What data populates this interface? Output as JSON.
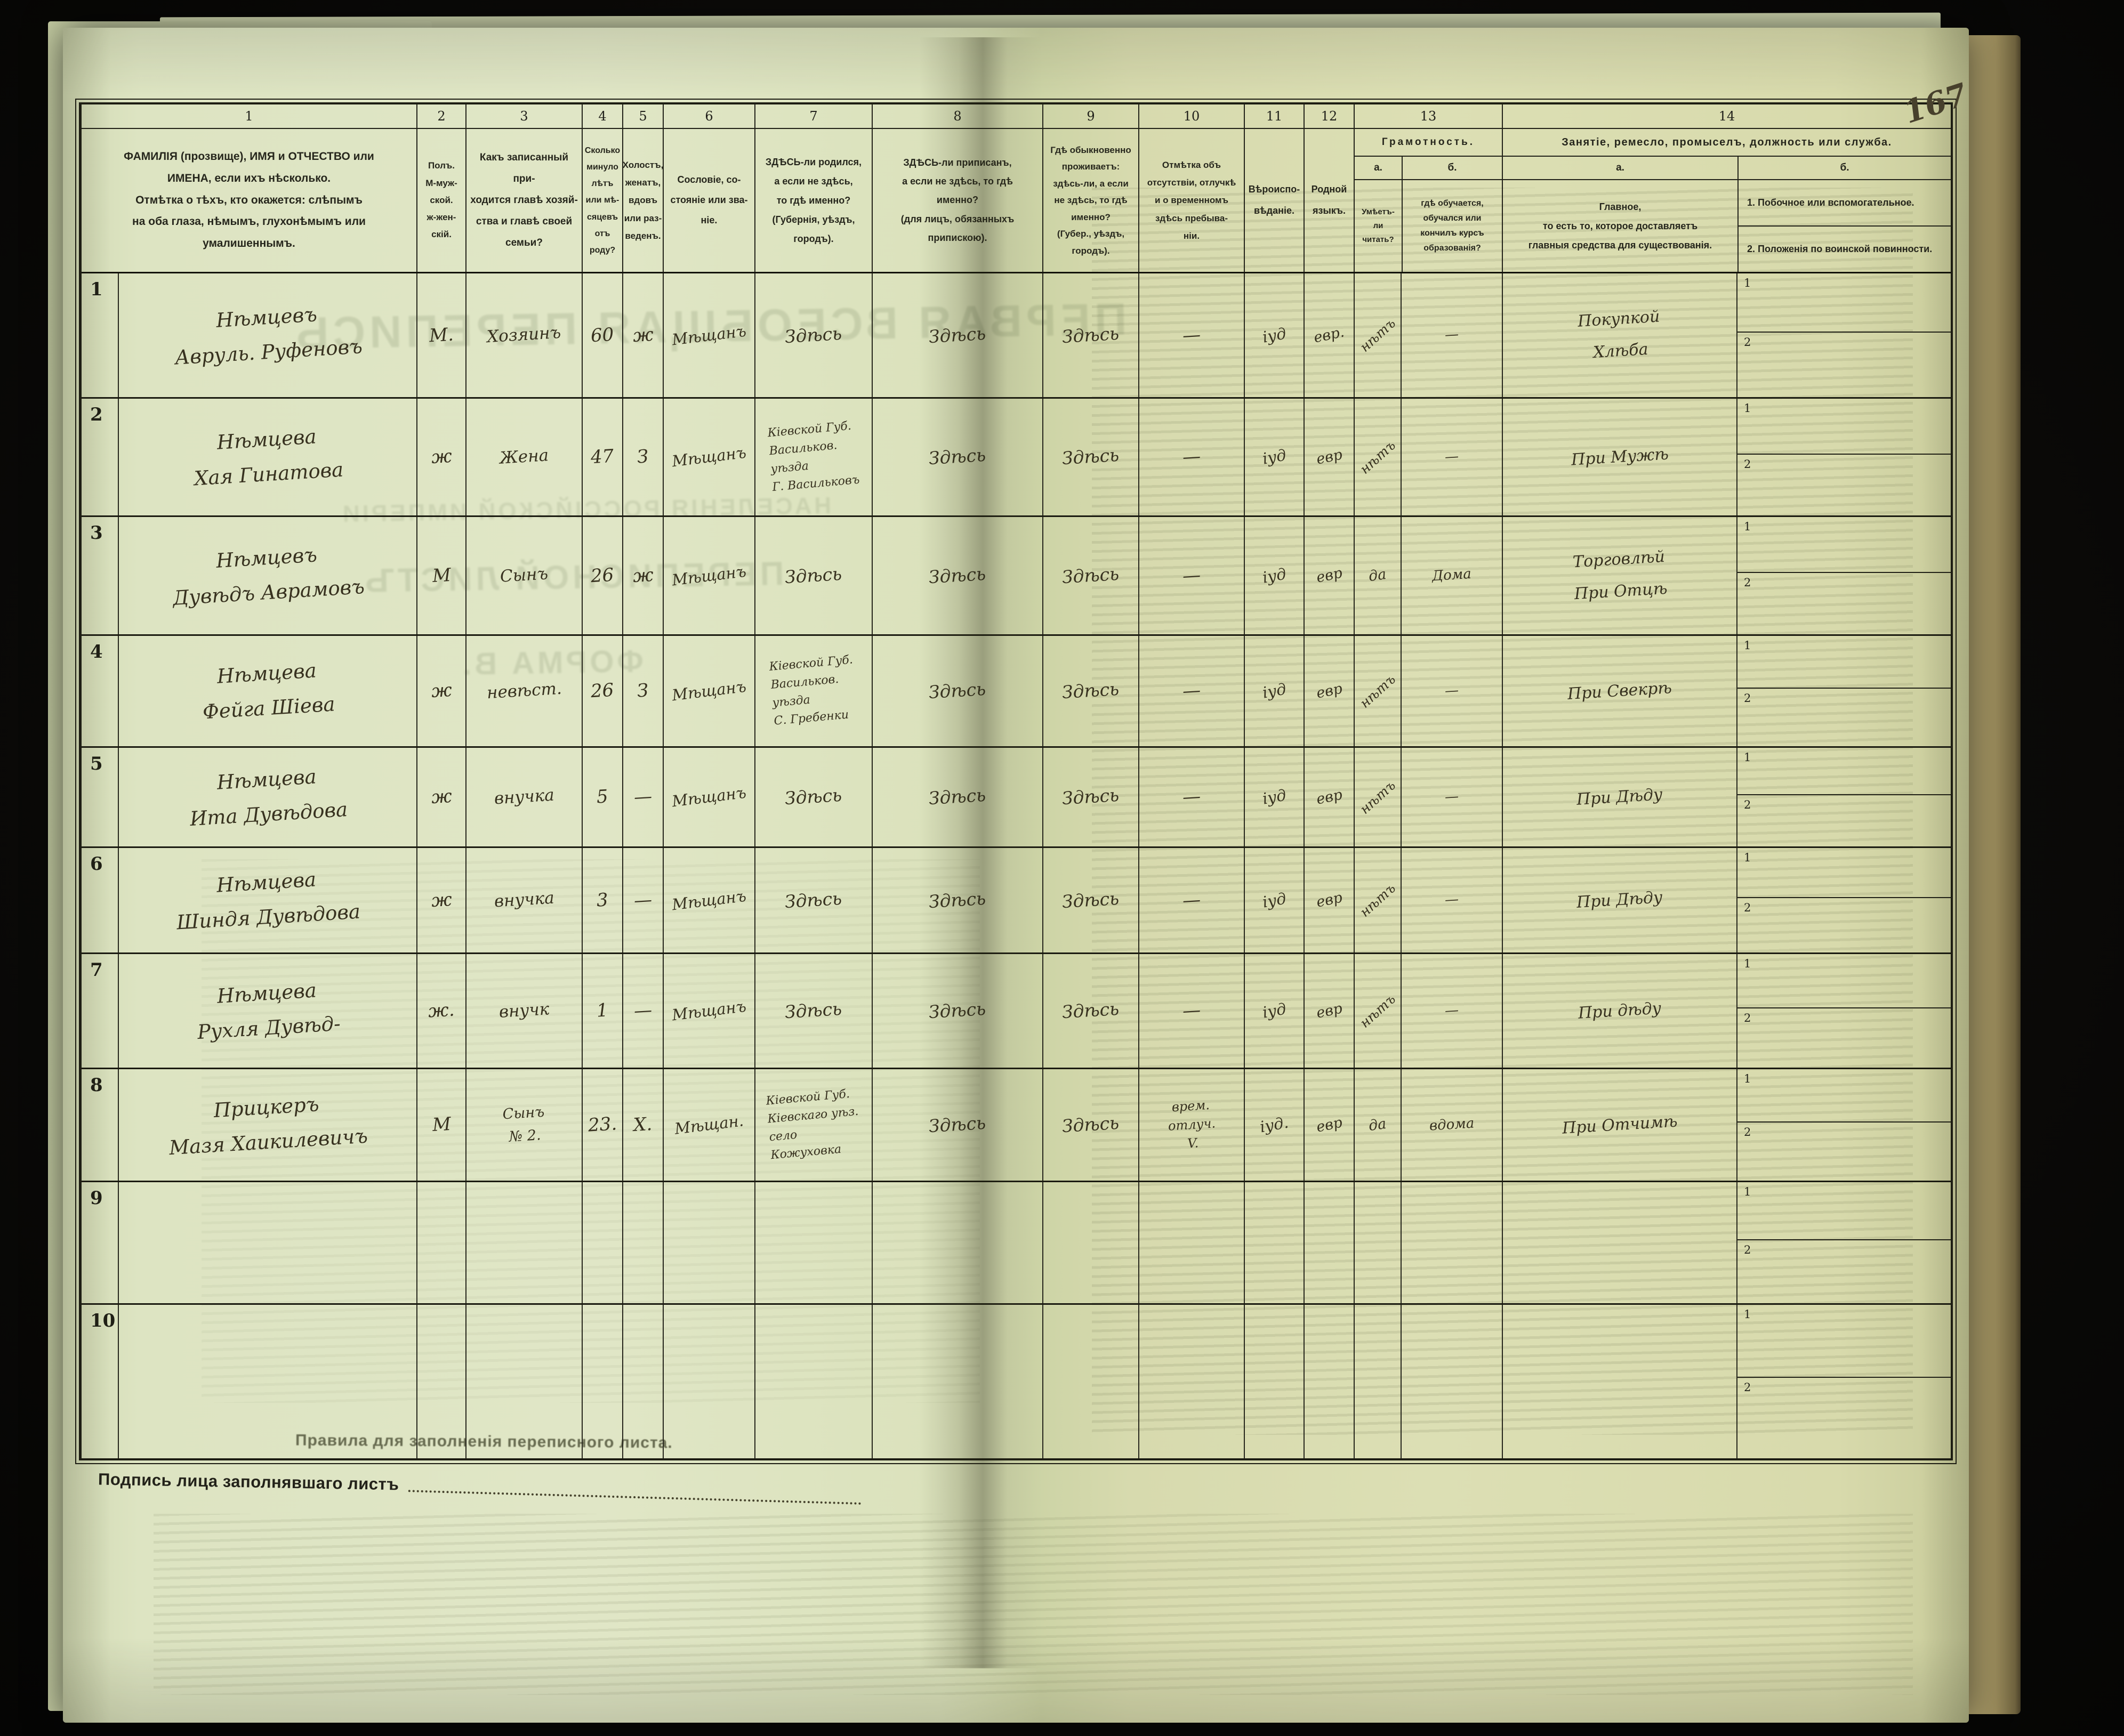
{
  "page_number": "167",
  "header": {
    "col_numbers": {
      "c1": "1",
      "c2": "2",
      "c3": "3",
      "c4": "4",
      "c5": "5",
      "c6": "6",
      "c7": "7",
      "c8": "8",
      "c9": "9",
      "c10": "10",
      "c11": "11",
      "c12": "12",
      "c13": "13",
      "c14": "14"
    },
    "c1": "ФАМИЛІЯ (прозвище), ИМЯ и ОТЧЕСТВО или\nИМЕНА, если ихъ нѣсколько.\nОтмѣтка о тѣхъ, кто окажется: слѣпымъ\nна оба глаза, нѣмымъ, глухонѣмымъ или\nумалишеннымъ.",
    "c2": "Полъ.\nМ-муж-\nской.\nж-жен-\nскій.",
    "c3": "Какъ записанный при-\nходится главѣ хозяй-\nства и главѣ своей\nсемьи?",
    "c4": "Сколько\nминуло\nлѣтъ\nили мѣ-\nсяцевъ\nотъ роду?",
    "c5": "Холостъ,\nженатъ,\nвдовъ\nили раз-\nведенъ.",
    "c6": "Сословіе, со-\nстояніе или зва-\nніе.",
    "c7": "ЗДѢСЬ-ли родился,\nа если не здѣсь,\nто гдѣ именно?\n(Губернія, уѣздъ, городъ).",
    "c8": "ЗДѢСЬ-ли приписанъ,\nа если не здѣсь, то гдѣ\nименно?\n(для лицъ, обязанныхъ\nприпискою).",
    "c9": "Гдѣ обыкновенно\nпроживаетъ:\nздѣсь-ли, а если\nне здѣсь, то гдѣ\nименно?\n(Губер., уѣздъ, городъ).",
    "c10": "Отмѣтка объ\nотсутствіи, отлучкѣ\nи о временномъ\nздѣсь пребыва-\nніи.",
    "c11": "Вѣроиспо-\nвѣданіе.",
    "c12": "Родной\nязыкъ.",
    "c13": {
      "title": "Грамотность.",
      "a_label": "а.",
      "b_label": "б.",
      "a": "Умѣетъ-\nли\nчитать?",
      "b": "гдѣ обучается,\nобучался или\nкончилъ курсъ\nобразованія?"
    },
    "c14": {
      "title": "Занятіе, ремесло, промыселъ, должность или служба.",
      "a_label": "а.",
      "b_label": "б.",
      "a": "Главное,\nто есть то, которое доставляетъ\nглавныя средства для существованія.",
      "b1": "1. Побочное или вспомогательное.",
      "b2": "2. Положенія по воинской повинности."
    }
  },
  "row_occ_b_marks": [
    "1",
    "2"
  ],
  "rows": [
    {
      "num": "1",
      "name": "Нѣмцевъ\nАвруль. Руфеновъ",
      "sex": "М.",
      "rel": "Хозяинъ",
      "age": "60",
      "marital": "ж",
      "estate": "Мѣщанъ",
      "born": "Здѣсь",
      "registered": "Здѣсь",
      "resides": "Здѣсь",
      "absence": "—",
      "religion": "іуд",
      "language": "евр.",
      "lit_a": "нѣтъ",
      "lit_b": "—",
      "occ_a": "Покупкой\nХлѣба",
      "occ_b": ""
    },
    {
      "num": "2",
      "name": "Нѣмцева\nХая Гинатова",
      "sex": "ж",
      "rel": "Жена",
      "age": "47",
      "marital": "З",
      "estate": "Мѣщанъ",
      "born": "Кіевской Губ.\nВасильков.\nуѣзда\nГ. Васильковъ",
      "registered": "Здѣсь",
      "resides": "Здѣсь",
      "absence": "—",
      "religion": "іуд",
      "language": "евр",
      "lit_a": "нѣтъ",
      "lit_b": "—",
      "occ_a": "При Мужѣ",
      "occ_b": ""
    },
    {
      "num": "3",
      "name": "Нѣмцевъ\nДувѣдъ Аврамовъ",
      "sex": "М",
      "rel": "Сынъ",
      "age": "26",
      "marital": "ж",
      "estate": "Мѣщанъ",
      "born": "Здѣсь",
      "registered": "Здѣсь",
      "resides": "Здѣсь",
      "absence": "—",
      "religion": "іуд",
      "language": "евр",
      "lit_a": "да",
      "lit_b": "Дома",
      "occ_a": "Торговлѣй\nПри Отцѣ",
      "occ_b": ""
    },
    {
      "num": "4",
      "name": "Нѣмцева\nФейга Шіева",
      "sex": "ж",
      "rel": "невѣст.",
      "age": "26",
      "marital": "З",
      "estate": "Мѣщанъ",
      "born": "Кіевской Губ.\nВасильков.\nуѣзда\nС. Гребенки",
      "registered": "Здѣсь",
      "resides": "Здѣсь",
      "absence": "—",
      "religion": "іуд",
      "language": "евр",
      "lit_a": "нѣтъ",
      "lit_b": "—",
      "occ_a": "При Свекрѣ",
      "occ_b": ""
    },
    {
      "num": "5",
      "name": "Нѣмцева\nИта Дувѣдова",
      "sex": "ж",
      "rel": "внучка",
      "age": "5",
      "marital": "—",
      "estate": "Мѣщанъ",
      "born": "Здѣсь",
      "registered": "Здѣсь",
      "resides": "Здѣсь",
      "absence": "—",
      "religion": "іуд",
      "language": "евр",
      "lit_a": "нѣтъ",
      "lit_b": "—",
      "occ_a": "При Дѣду",
      "occ_b": ""
    },
    {
      "num": "6",
      "name": "Нѣмцева\nШиндя Дувѣдова",
      "sex": "ж",
      "rel": "внучка",
      "age": "3",
      "marital": "—",
      "estate": "Мѣщанъ",
      "born": "Здѣсь",
      "registered": "Здѣсь",
      "resides": "Здѣсь",
      "absence": "—",
      "religion": "іуд",
      "language": "евр",
      "lit_a": "нѣтъ",
      "lit_b": "—",
      "occ_a": "При Дѣду",
      "occ_b": ""
    },
    {
      "num": "7",
      "name": "Нѣмцева\nРухля Дувѣд-",
      "sex": "ж.",
      "rel": "внучк",
      "age": "1",
      "marital": "—",
      "estate": "Мѣщанъ",
      "born": "Здѣсь",
      "registered": "Здѣсь",
      "resides": "Здѣсь",
      "absence": "—",
      "religion": "іуд",
      "language": "евр",
      "lit_a": "нѣтъ",
      "lit_b": "—",
      "occ_a": "При дѣду",
      "occ_b": ""
    },
    {
      "num": "8",
      "name": "Прицкеръ\nМазя Хаикилевичъ",
      "sex": "М",
      "rel": "Сынъ\n№ 2.",
      "age": "23.",
      "marital": "Х.",
      "estate": "Мѣщан.",
      "born": "Кіевской Губ.\nКіевскаго уѣз.\nсело\nКожуховка",
      "registered": "Здѣсь",
      "resides": "Здѣсь",
      "absence": "врем.\nотлуч.\nV.",
      "religion": "іуд.",
      "language": "евр",
      "lit_a": "да",
      "lit_b": "вдома",
      "occ_a": "При Отчимѣ",
      "occ_b": ""
    },
    {
      "num": "9",
      "name": "",
      "sex": "",
      "rel": "",
      "age": "",
      "marital": "",
      "estate": "",
      "born": "",
      "registered": "",
      "resides": "",
      "absence": "",
      "religion": "",
      "language": "",
      "lit_a": "",
      "lit_b": "",
      "occ_a": "",
      "occ_b": ""
    },
    {
      "num": "10",
      "name": "",
      "sex": "",
      "rel": "",
      "age": "",
      "marital": "",
      "estate": "",
      "born": "",
      "registered": "",
      "resides": "",
      "absence": "",
      "religion": "",
      "language": "",
      "lit_a": "",
      "lit_b": "",
      "occ_a": "",
      "occ_b": ""
    }
  ],
  "footer": {
    "signature_label": "Подпись лица заполнявшаго листъ"
  },
  "bleed_through": {
    "line1": "ПЕРВАЯ ВСЕОБЩАЯ ПЕРЕПИСЬ",
    "line2": "НАСЕЛЕНІЯ РОССІЙСКОЙ ИМПЕРІИ",
    "line3": "ПЕРЕПИСНОЙ ЛИСТЪ",
    "line4": "ФОРМА В.",
    "rules_caption": "Правила для заполненія переписного листа."
  }
}
